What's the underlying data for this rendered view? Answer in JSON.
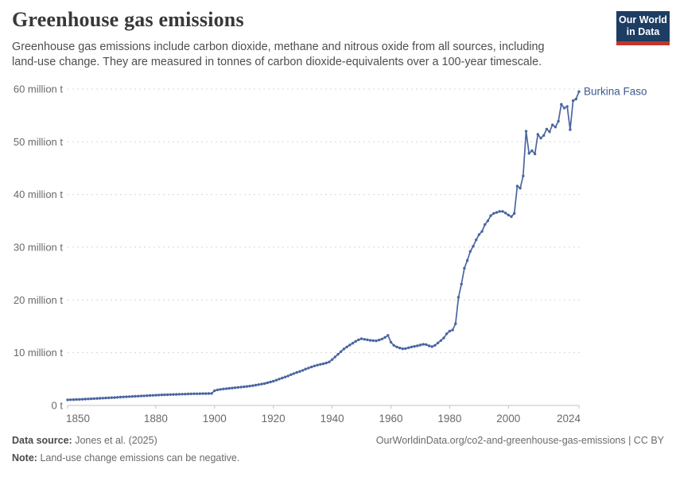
{
  "header": {
    "title": "Greenhouse gas emissions",
    "subtitle": "Greenhouse gas emissions include carbon dioxide, methane and nitrous oxide from all sources, including\nland-use change. They are measured in tonnes of carbon dioxide-equivalents over a 100-year timescale.",
    "logo_line1": "Our World",
    "logo_line2": "in Data"
  },
  "footer": {
    "source_label": "Data source:",
    "source": "Jones et al. (2025)",
    "note_label": "Note:",
    "note": "Land-use change emissions can be negative.",
    "credit": "OurWorldinData.org/co2-and-greenhouse-gas-emissions | CC BY"
  },
  "colors": {
    "line": "#4a66a0",
    "entity_label": "#3d5a8f",
    "gridline": "#d8d8d8",
    "axis": "#c3c3c3",
    "tick_text": "#696969",
    "logo_bg": "#1d3d63",
    "logo_stripe": "#c0362c"
  },
  "chart_data": {
    "type": "line",
    "title": "Greenhouse gas emissions",
    "unit": "tonnes of CO2-equivalents",
    "xlim": [
      1850,
      2024
    ],
    "ylim": [
      0,
      60000000
    ],
    "grid": true,
    "legend_position": "end-of-line",
    "x_ticks": [
      1850,
      1880,
      1900,
      1920,
      1940,
      1960,
      1980,
      2000,
      2024
    ],
    "y_ticks": [
      {
        "value": 0,
        "label": "0 t"
      },
      {
        "value": 10000000,
        "label": "10 million t"
      },
      {
        "value": 20000000,
        "label": "20 million t"
      },
      {
        "value": 30000000,
        "label": "30 million t"
      },
      {
        "value": 40000000,
        "label": "40 million t"
      },
      {
        "value": 50000000,
        "label": "50 million t"
      },
      {
        "value": 60000000,
        "label": "60 million t"
      }
    ],
    "series": [
      {
        "name": "Burkina Faso",
        "year_start": 1850,
        "year_end": 2024,
        "values_million_t": [
          1.05,
          1.08,
          1.1,
          1.13,
          1.15,
          1.18,
          1.2,
          1.23,
          1.26,
          1.29,
          1.32,
          1.35,
          1.38,
          1.41,
          1.44,
          1.47,
          1.5,
          1.54,
          1.58,
          1.62,
          1.65,
          1.68,
          1.71,
          1.74,
          1.77,
          1.8,
          1.83,
          1.86,
          1.89,
          1.92,
          1.95,
          1.97,
          2.0,
          2.02,
          2.04,
          2.06,
          2.08,
          2.1,
          2.12,
          2.14,
          2.16,
          2.18,
          2.2,
          2.21,
          2.22,
          2.23,
          2.24,
          2.25,
          2.26,
          2.27,
          2.8,
          2.95,
          3.05,
          3.12,
          3.18,
          3.24,
          3.3,
          3.36,
          3.42,
          3.48,
          3.54,
          3.6,
          3.68,
          3.76,
          3.85,
          3.95,
          4.05,
          4.15,
          4.3,
          4.45,
          4.6,
          4.8,
          5.0,
          5.2,
          5.4,
          5.6,
          5.85,
          6.05,
          6.25,
          6.45,
          6.65,
          6.9,
          7.1,
          7.3,
          7.5,
          7.65,
          7.8,
          7.9,
          8.05,
          8.25,
          8.7,
          9.2,
          9.7,
          10.2,
          10.7,
          11.1,
          11.45,
          11.8,
          12.15,
          12.45,
          12.65,
          12.55,
          12.45,
          12.35,
          12.3,
          12.25,
          12.4,
          12.6,
          12.9,
          13.3,
          12.0,
          11.4,
          11.1,
          10.9,
          10.75,
          10.8,
          10.95,
          11.1,
          11.2,
          11.3,
          11.45,
          11.6,
          11.55,
          11.3,
          11.15,
          11.4,
          11.85,
          12.3,
          12.8,
          13.6,
          14.1,
          14.3,
          15.5,
          20.5,
          23.0,
          26.0,
          27.5,
          29.2,
          30.2,
          31.4,
          32.4,
          33.0,
          34.3,
          35.0,
          36.0,
          36.4,
          36.6,
          36.8,
          36.8,
          36.5,
          36.1,
          35.8,
          36.4,
          41.6,
          41.2,
          43.5,
          52.0,
          47.8,
          48.3,
          47.7,
          51.4,
          50.7,
          51.2,
          52.4,
          51.9,
          53.2,
          52.8,
          53.9,
          57.1,
          56.4,
          56.7,
          52.3,
          57.8,
          58.1,
          59.5
        ]
      }
    ]
  }
}
